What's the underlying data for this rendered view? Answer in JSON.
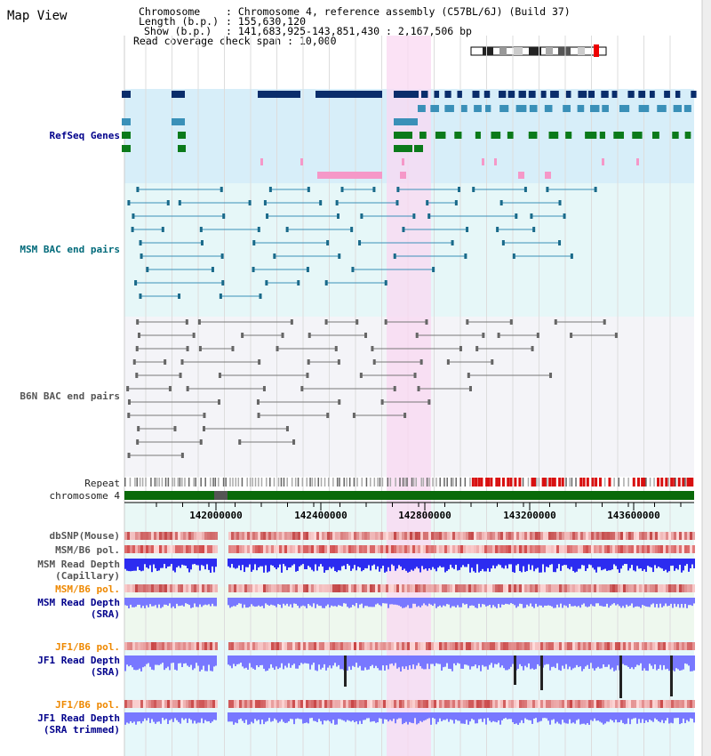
{
  "page": {
    "title": "Map View"
  },
  "info": {
    "chromosome_label": "Chromosome",
    "chromosome_value": "Chromosome 4, reference assembly (C57BL/6J) (Build 37)",
    "length_label": "Length (b.p.)",
    "length_value": "155,630,120",
    "show_label": "Show (b.p.)",
    "show_value": "141,683,925-143,851,430 : 2,167,506 bp",
    "span_label": "Read coverage check span",
    "span_value": "10,000"
  },
  "tracks": {
    "refseq": "RefSeq Genes",
    "msm_bac": "MSM BAC end pairs",
    "b6n_bac": "B6N BAC end pairs",
    "repeat": "Repeat",
    "chromosome": "chromosome 4",
    "dbsnp": "dbSNP(Mouse)",
    "msm_b6_pol_1": "MSM/B6 pol.",
    "msm_read_depth_cap_1": "MSM Read Depth",
    "msm_read_depth_cap_2": "(Capillary)",
    "msm_b6_pol_2": "MSM/B6 pol.",
    "msm_read_depth_sra_1": "MSM Read Depth",
    "msm_read_depth_sra_2": "(SRA)",
    "jf1_b6_pol_1": "JF1/B6 pol.",
    "jf1_read_depth_sra_1": "JF1 Read Depth",
    "jf1_read_depth_sra_2": "(SRA)",
    "jf1_b6_pol_2": "JF1/B6 pol.",
    "jf1_read_depth_trim_1": "JF1 Read Depth",
    "jf1_read_depth_trim_2": "(SRA trimmed)"
  },
  "axis": {
    "ticks": [
      "142000000",
      "142400000",
      "142800000",
      "143200000",
      "143600000"
    ]
  },
  "colors": {
    "highlight": "#f9d8f2",
    "refseq_bg": "#d7eef9",
    "bac_bg": "#e6f7f8",
    "navy": "#0a2d6b",
    "steel": "#3a90b8",
    "green": "#0b7a1a",
    "pink": "#f598c8",
    "chrom_green": "#0a6a0a",
    "depth_blue": "#2c2cf0",
    "depth_light": "#7878ff"
  }
}
